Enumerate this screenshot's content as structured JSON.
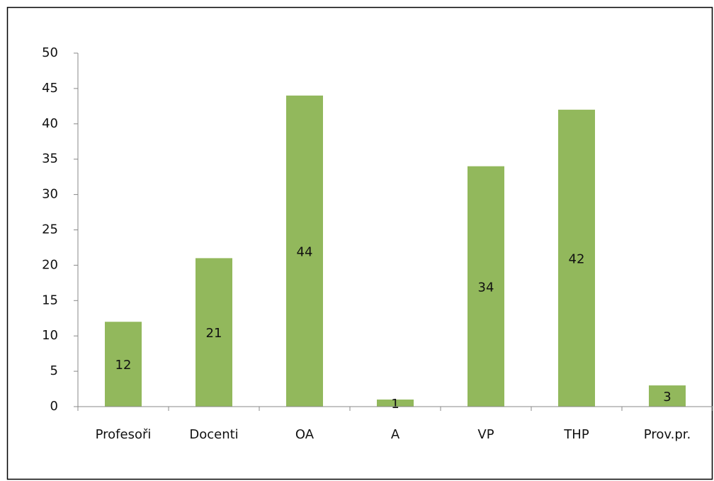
{
  "chart_data": {
    "type": "bar",
    "categories": [
      "Profesoři",
      "Docenti",
      "OA",
      "A",
      "VP",
      "THP",
      "Prov.pr."
    ],
    "values": [
      12,
      21,
      44,
      1,
      34,
      42,
      3
    ],
    "color": "#92b85c",
    "ylim": [
      0,
      50
    ],
    "yticks": [
      0,
      5,
      10,
      15,
      20,
      25,
      30,
      35,
      40,
      45,
      50
    ],
    "grid": false
  }
}
